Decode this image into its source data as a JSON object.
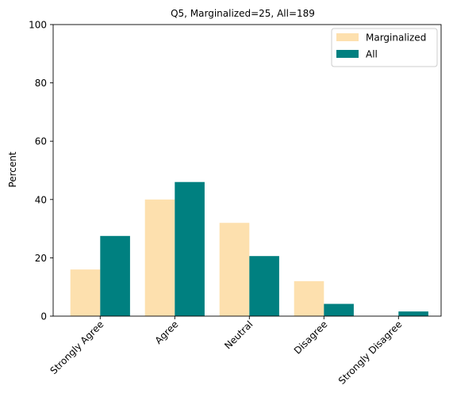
{
  "chart_data": {
    "type": "bar",
    "title": "Q5, Marginalized=25, All=189",
    "xlabel": "",
    "ylabel": "Percent",
    "ylim": [
      0,
      100
    ],
    "yticks": [
      0,
      20,
      40,
      60,
      80,
      100
    ],
    "grid": false,
    "legend_position": "top-right",
    "categories": [
      "Strongly Agree",
      "Agree",
      "Neutral",
      "Disagree",
      "Strongly Disagree"
    ],
    "series": [
      {
        "name": "Marginalized",
        "color": "#fde0ae",
        "values": [
          16.0,
          40.0,
          32.0,
          12.0,
          0.0
        ]
      },
      {
        "name": "All",
        "color": "#008080",
        "values": [
          27.5,
          46.0,
          20.6,
          4.2,
          1.6
        ]
      }
    ]
  }
}
